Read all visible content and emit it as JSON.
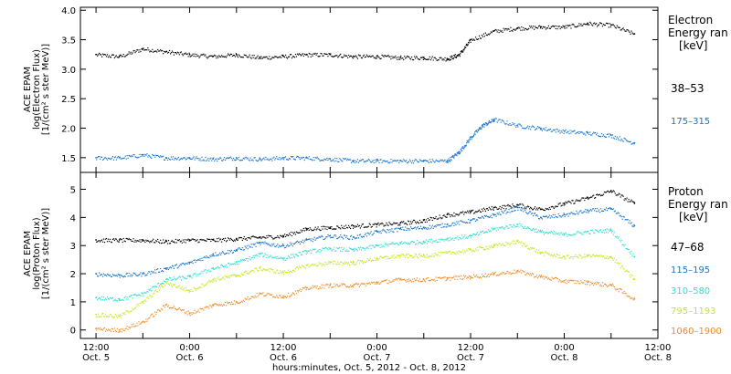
{
  "chart_data": [
    {
      "type": "scatter",
      "panel": "electron",
      "ylabel": [
        "ACE EPAM",
        "log(Electron Flux)",
        "[1/(cm² s ster MeV)]"
      ],
      "ylim": [
        1.25,
        4.05
      ],
      "yticks": [
        1.5,
        2.0,
        2.5,
        3.0,
        3.5,
        4.0
      ],
      "ytick_labels": [
        "1.5",
        "2.0",
        "2.5",
        "3.0",
        "3.5",
        "4.0"
      ],
      "legend_title": [
        "Electron",
        "Energy ran",
        "[keV]"
      ],
      "series": [
        {
          "name": "38–53",
          "color": "#000000",
          "x": [
            0,
            6,
            12,
            18,
            24,
            30,
            36,
            42,
            48,
            54,
            60,
            66,
            72,
            78,
            84,
            90,
            93,
            96,
            102,
            108,
            114,
            120,
            126,
            132,
            138
          ],
          "y": [
            3.25,
            3.22,
            3.35,
            3.3,
            3.25,
            3.22,
            3.25,
            3.2,
            3.22,
            3.25,
            3.25,
            3.22,
            3.22,
            3.2,
            3.2,
            3.18,
            3.25,
            3.5,
            3.65,
            3.7,
            3.72,
            3.72,
            3.78,
            3.75,
            3.6
          ]
        },
        {
          "name": "175–315",
          "color": "#1874CD",
          "x": [
            0,
            6,
            12,
            18,
            24,
            30,
            36,
            42,
            48,
            54,
            60,
            66,
            72,
            78,
            84,
            90,
            93,
            96,
            99,
            102,
            108,
            114,
            120,
            126,
            132,
            138
          ],
          "y": [
            1.5,
            1.5,
            1.55,
            1.5,
            1.5,
            1.48,
            1.5,
            1.48,
            1.5,
            1.5,
            1.48,
            1.45,
            1.45,
            1.45,
            1.45,
            1.45,
            1.6,
            1.85,
            2.05,
            2.15,
            2.05,
            2.0,
            1.95,
            1.92,
            1.88,
            1.75
          ]
        }
      ]
    },
    {
      "type": "scatter",
      "panel": "proton",
      "ylabel": [
        "ACE EPAM",
        "log(Proton Flux)",
        "[1/(cm² s ster MeV)]"
      ],
      "ylim": [
        -0.3,
        5.6
      ],
      "yticks": [
        0,
        1,
        2,
        3,
        4,
        5
      ],
      "ytick_labels": [
        "0",
        "1",
        "2",
        "3",
        "4",
        "5"
      ],
      "legend_title": [
        "Proton",
        "Energy ran",
        "[keV]"
      ],
      "xlabel": "hours:minutes, Oct. 5, 2012 - Oct. 8, 2012",
      "xlim": [
        -4,
        144
      ],
      "xticks": [
        0,
        12,
        24,
        36,
        48,
        60,
        72,
        84,
        96,
        108,
        120,
        132,
        144
      ],
      "xtick_labels": [
        [
          "12:00",
          "Oct. 5"
        ],
        [
          "0:00",
          "Oct. 6"
        ],
        [
          "12:00",
          "Oct. 6"
        ],
        [
          "0:00",
          "Oct. 7"
        ],
        [
          "12:00",
          "Oct. 7"
        ],
        [
          "0:00",
          "Oct. 8"
        ],
        [
          "12:00",
          "Oct. 8"
        ]
      ],
      "series": [
        {
          "name": "47–68",
          "color": "#000000",
          "x": [
            0,
            6,
            12,
            18,
            24,
            30,
            36,
            42,
            48,
            54,
            60,
            66,
            72,
            78,
            84,
            90,
            96,
            102,
            108,
            114,
            120,
            126,
            132,
            138
          ],
          "y": [
            3.2,
            3.2,
            3.2,
            3.15,
            3.2,
            3.2,
            3.25,
            3.3,
            3.35,
            3.6,
            3.65,
            3.7,
            3.75,
            3.8,
            3.9,
            4.1,
            4.2,
            4.35,
            4.45,
            4.3,
            4.5,
            4.7,
            4.95,
            4.5
          ]
        },
        {
          "name": "115–195",
          "color": "#1874CD",
          "x": [
            0,
            6,
            12,
            18,
            24,
            30,
            36,
            42,
            48,
            54,
            60,
            66,
            72,
            78,
            84,
            90,
            96,
            102,
            108,
            114,
            120,
            126,
            132,
            138
          ],
          "y": [
            2.0,
            1.95,
            2.0,
            2.2,
            2.4,
            2.7,
            2.85,
            3.1,
            3.0,
            3.2,
            3.35,
            3.3,
            3.5,
            3.6,
            3.65,
            3.75,
            3.9,
            4.1,
            4.35,
            4.0,
            4.1,
            4.25,
            4.3,
            3.7
          ]
        },
        {
          "name": "310–580",
          "color": "#2EE0D0",
          "x": [
            0,
            6,
            12,
            18,
            24,
            30,
            36,
            42,
            48,
            54,
            60,
            66,
            72,
            78,
            84,
            90,
            96,
            102,
            108,
            114,
            120,
            126,
            132,
            138
          ],
          "y": [
            1.15,
            1.1,
            1.3,
            1.8,
            1.9,
            2.2,
            2.4,
            2.7,
            2.55,
            2.8,
            2.9,
            2.85,
            3.0,
            3.1,
            3.15,
            3.25,
            3.35,
            3.6,
            3.75,
            3.5,
            3.4,
            3.5,
            3.55,
            2.6
          ]
        },
        {
          "name": "795–1193",
          "color": "#C8E61E",
          "x": [
            0,
            6,
            12,
            18,
            24,
            30,
            36,
            42,
            48,
            54,
            60,
            66,
            72,
            78,
            84,
            90,
            96,
            102,
            108,
            114,
            120,
            126,
            132,
            138
          ],
          "y": [
            0.55,
            0.5,
            1.0,
            1.7,
            1.4,
            1.8,
            1.95,
            2.2,
            2.05,
            2.3,
            2.4,
            2.4,
            2.55,
            2.65,
            2.65,
            2.75,
            2.85,
            3.0,
            3.15,
            2.75,
            2.6,
            2.65,
            2.6,
            1.8
          ]
        },
        {
          "name": "1060–1900",
          "color": "#F08C28",
          "x": [
            0,
            6,
            12,
            18,
            24,
            30,
            36,
            42,
            48,
            54,
            60,
            66,
            72,
            78,
            84,
            90,
            96,
            102,
            108,
            114,
            120,
            126,
            132,
            138
          ],
          "y": [
            0.05,
            0.0,
            0.3,
            0.9,
            0.6,
            0.9,
            1.0,
            1.3,
            1.2,
            1.5,
            1.6,
            1.6,
            1.7,
            1.8,
            1.8,
            1.85,
            1.9,
            2.0,
            2.1,
            1.9,
            1.75,
            1.7,
            1.6,
            1.1
          ]
        }
      ]
    }
  ]
}
